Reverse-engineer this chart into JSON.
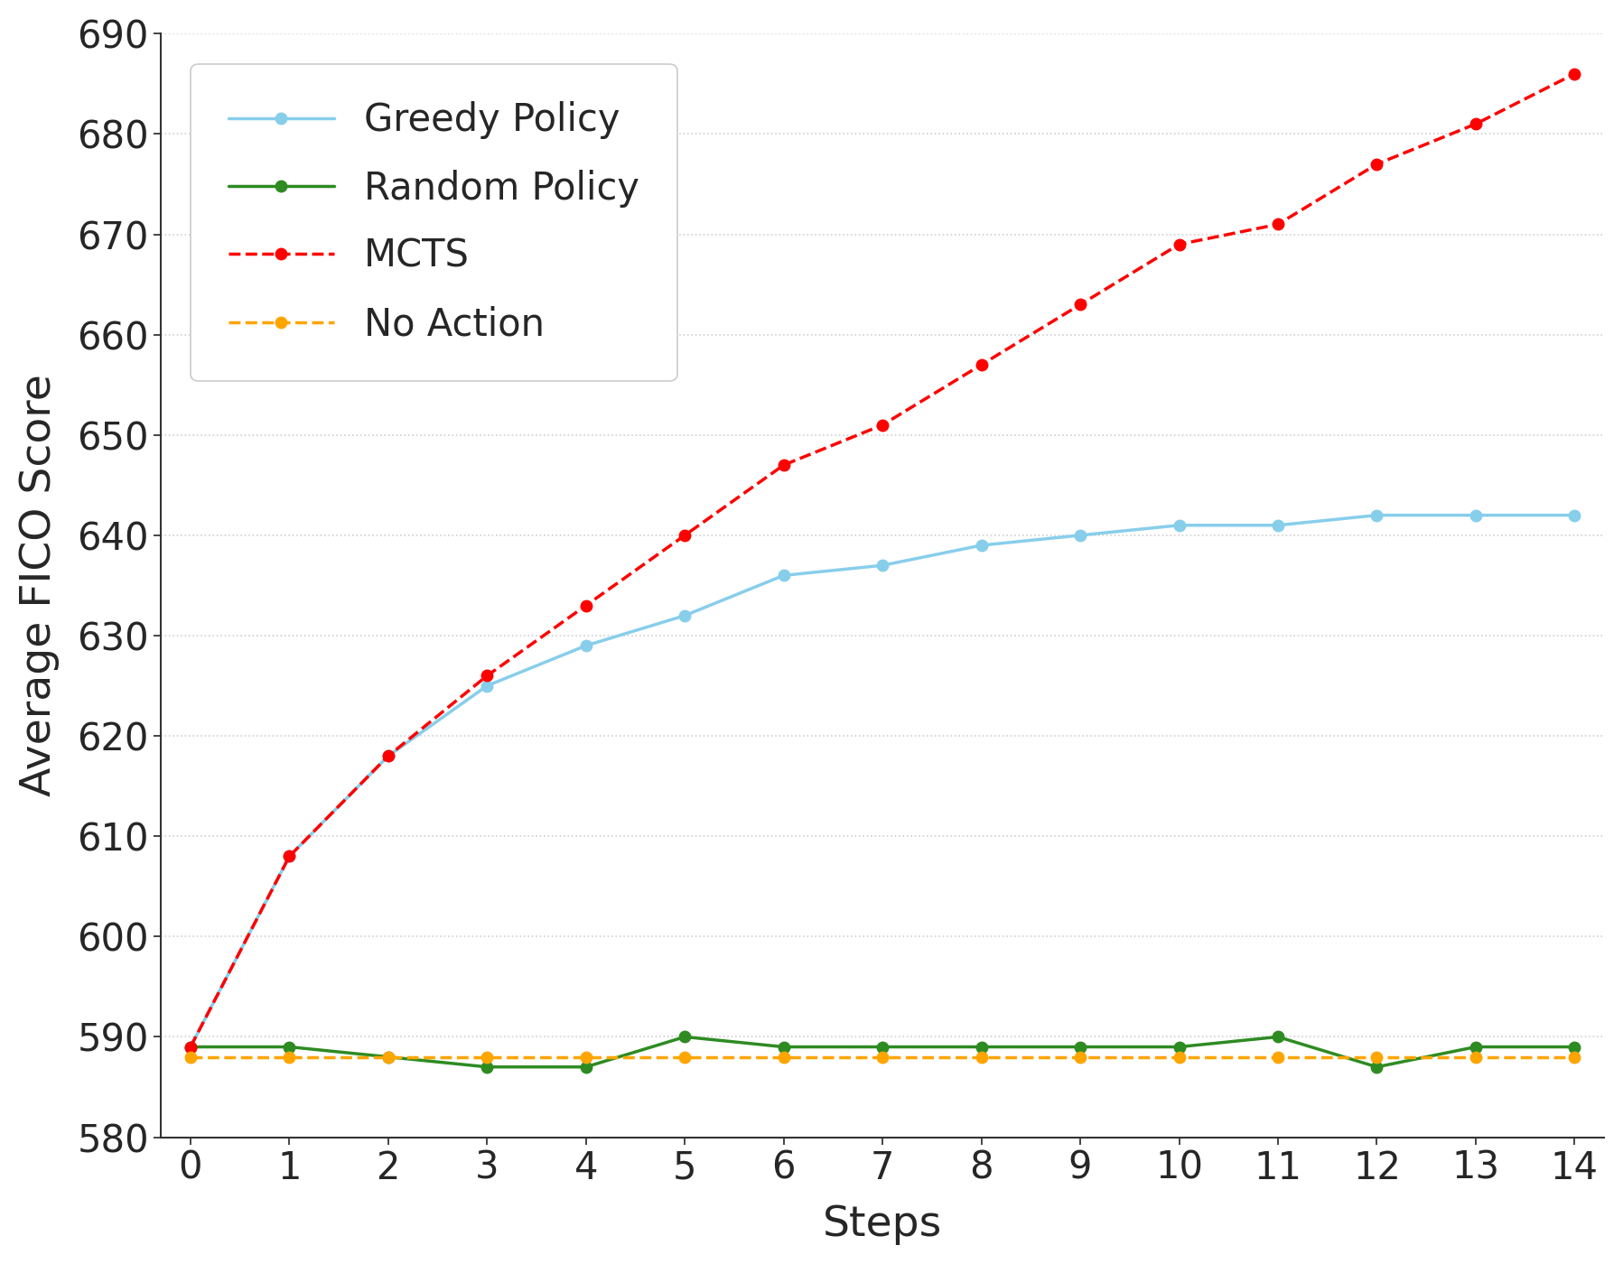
{
  "steps": [
    0,
    1,
    2,
    3,
    4,
    5,
    6,
    7,
    8,
    9,
    10,
    11,
    12,
    13,
    14
  ],
  "greedy_policy": [
    589,
    608,
    618,
    625,
    629,
    632,
    636,
    637,
    639,
    640,
    641,
    641,
    642,
    642,
    642
  ],
  "random_policy": [
    589,
    589,
    588,
    587,
    587,
    590,
    589,
    589,
    589,
    589,
    589,
    590,
    587,
    589,
    589
  ],
  "mcts": [
    589,
    608,
    618,
    626,
    633,
    640,
    647,
    651,
    657,
    663,
    669,
    671,
    677,
    681,
    686
  ],
  "no_action": [
    588,
    588,
    588,
    588,
    588,
    588,
    588,
    588,
    588,
    588,
    588,
    588,
    588,
    588,
    588
  ],
  "greedy_color": "#87CEEB",
  "random_color": "#2E8B22",
  "mcts_color": "#FF0000",
  "no_action_color": "#FFA500",
  "xlabel": "Steps",
  "ylabel": "Average FICO Score",
  "ylim": [
    580,
    690
  ],
  "xlim": [
    -0.3,
    14.3
  ],
  "yticks": [
    580,
    590,
    600,
    610,
    620,
    630,
    640,
    650,
    660,
    670,
    680,
    690
  ],
  "xticks": [
    0,
    1,
    2,
    3,
    4,
    5,
    6,
    7,
    8,
    9,
    10,
    11,
    12,
    13,
    14
  ],
  "legend_labels": [
    "Greedy Policy",
    "Random Policy",
    "MCTS",
    "No Action"
  ],
  "background_color": "#ffffff",
  "grid_color": "#d0d0d0",
  "marker_size": 9,
  "linewidth": 2.5,
  "title_fontsize": 36,
  "label_fontsize": 34,
  "tick_fontsize": 30,
  "legend_fontsize": 30
}
